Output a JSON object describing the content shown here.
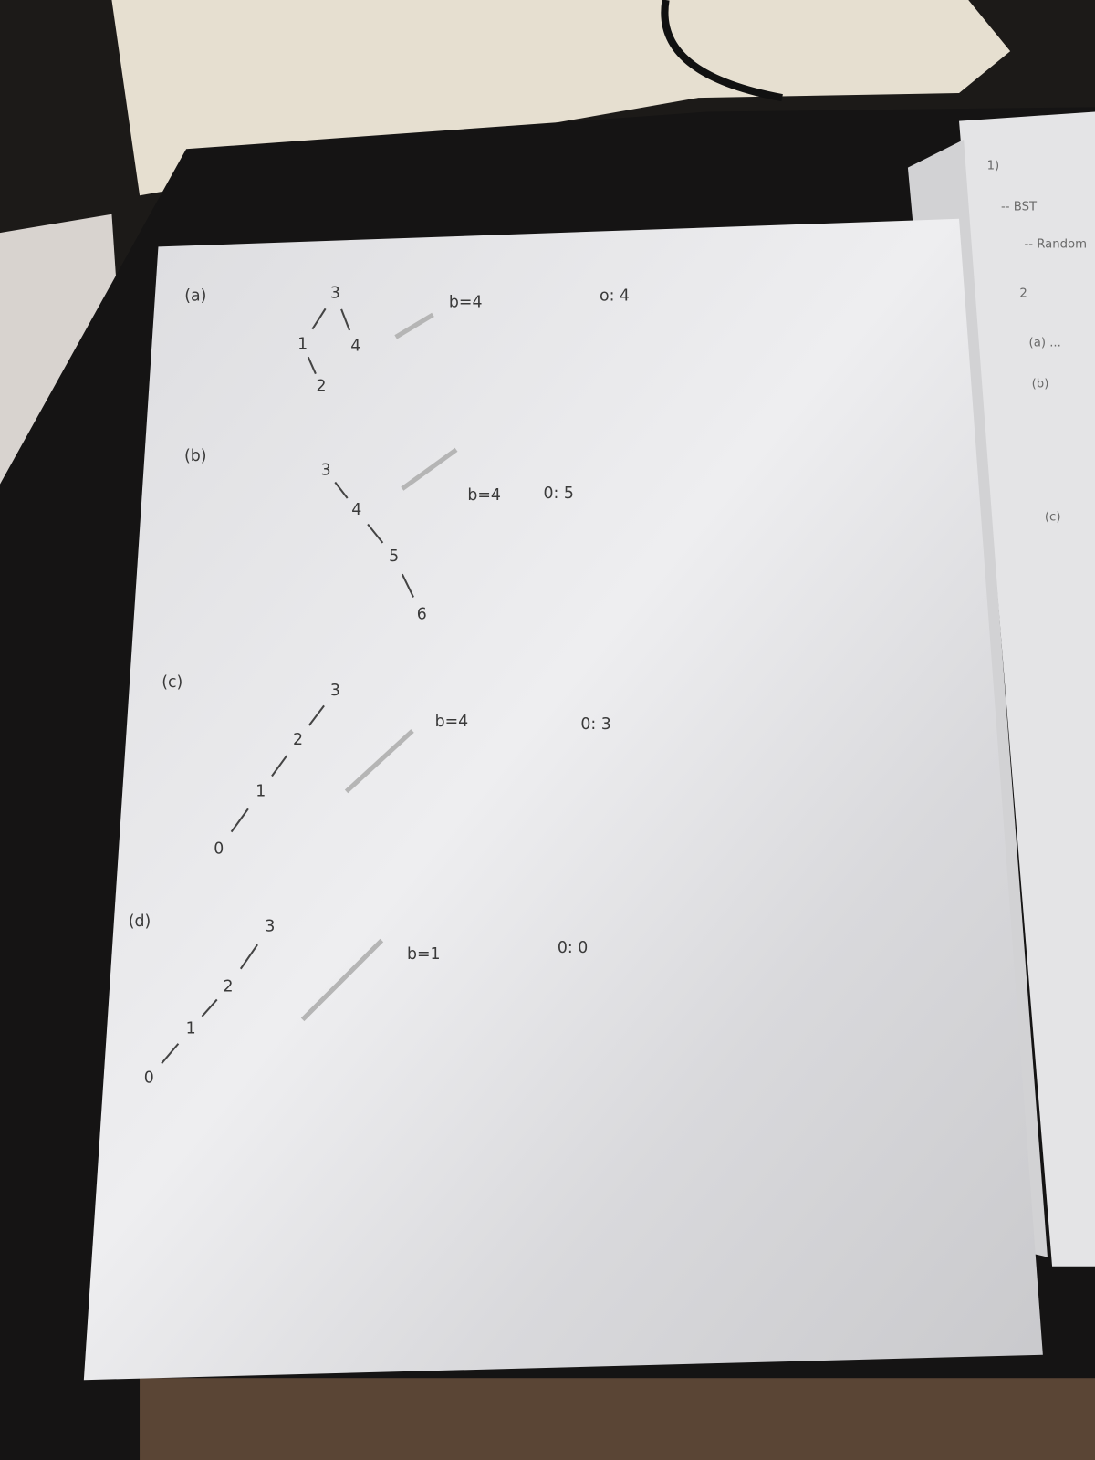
{
  "sections": [
    {
      "label": "(a)",
      "nodes": [
        "3",
        "1",
        "4",
        "2"
      ],
      "b": "b=4",
      "o": "o: 4"
    },
    {
      "label": "(b)",
      "nodes": [
        "3",
        "4",
        "5",
        "6"
      ],
      "b": "b=4",
      "o": "0: 5"
    },
    {
      "label": "(c)",
      "nodes": [
        "3",
        "2",
        "1",
        "0"
      ],
      "b": "b=4",
      "o": "0: 3"
    },
    {
      "label": "(d)",
      "nodes": [
        "3",
        "2",
        "1",
        "0"
      ],
      "b": "b=1",
      "o": "0: 0"
    }
  ],
  "side_page": [
    "1)",
    "-- BST",
    "-- Random",
    "2",
    "(a) ...",
    "(b)",
    "(c)"
  ]
}
